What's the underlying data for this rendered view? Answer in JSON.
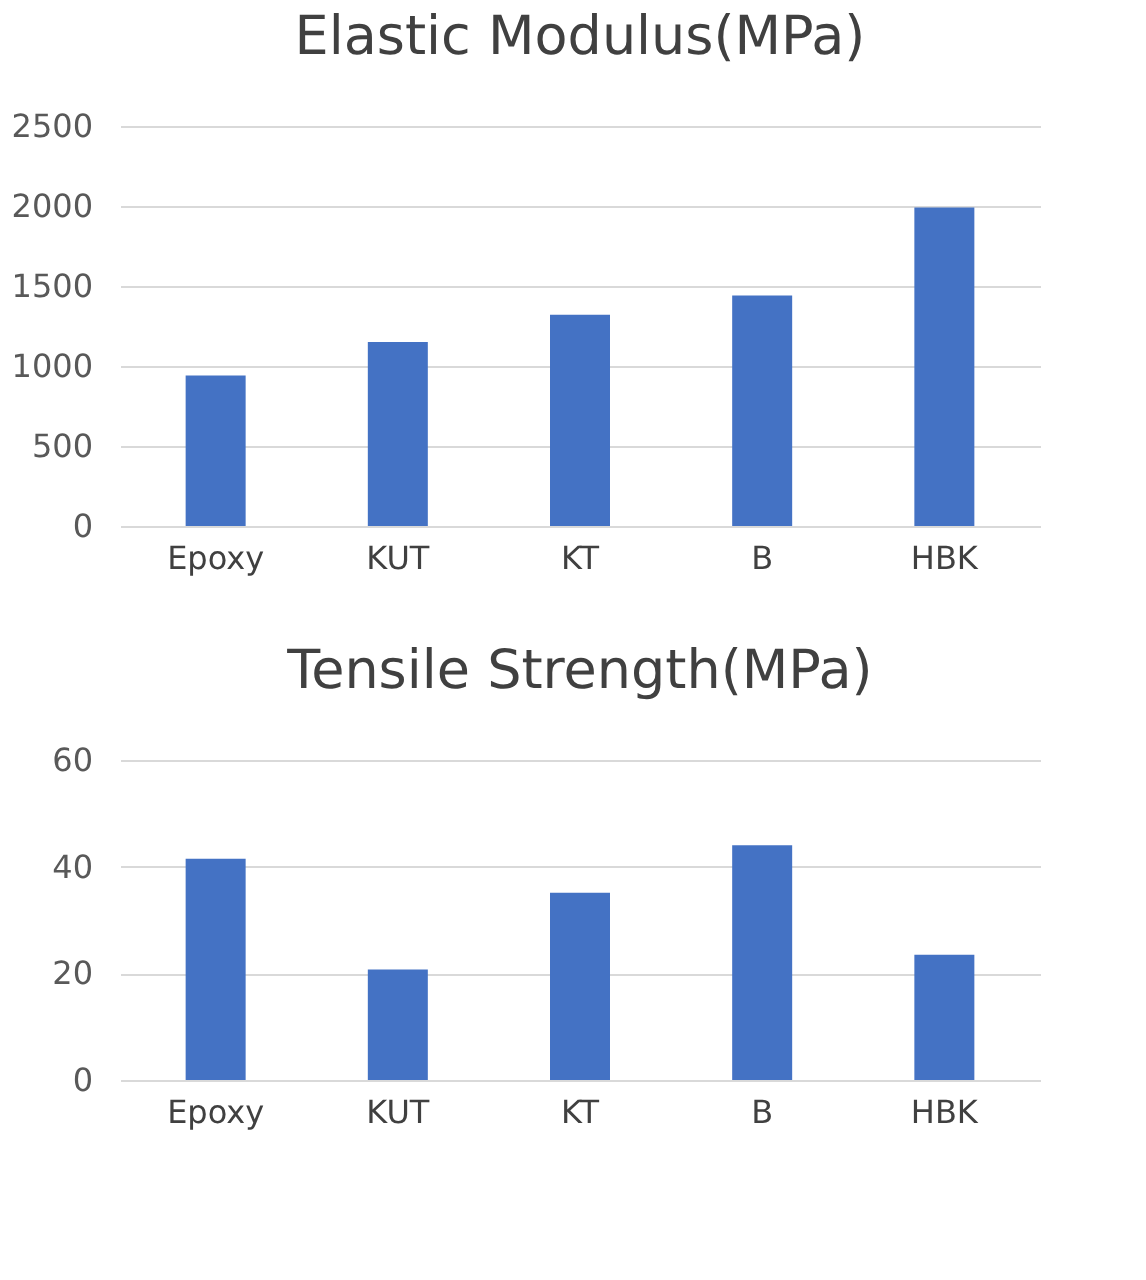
{
  "chart_data": [
    {
      "type": "bar",
      "title": "Elastic Modulus(MPa)",
      "categories": [
        "Epoxy",
        "KUT",
        "KT",
        "B",
        "HBK"
      ],
      "values": [
        940,
        1150,
        1320,
        1440,
        1990
      ],
      "color": "#4472c4",
      "ylim": [
        0,
        2500
      ],
      "yticks": [
        0,
        500,
        1000,
        1500,
        2000,
        2500
      ],
      "grid": "y"
    },
    {
      "type": "bar",
      "title": "Tensile Strength(MPa)",
      "categories": [
        "Epoxy",
        "KUT",
        "KT",
        "B",
        "HBK"
      ],
      "values": [
        41.5,
        20.7,
        35.1,
        44,
        23.5
      ],
      "color": "#4472c4",
      "ylim": [
        0,
        60
      ],
      "yticks": [
        0,
        20,
        40,
        60
      ],
      "grid": "y"
    }
  ]
}
